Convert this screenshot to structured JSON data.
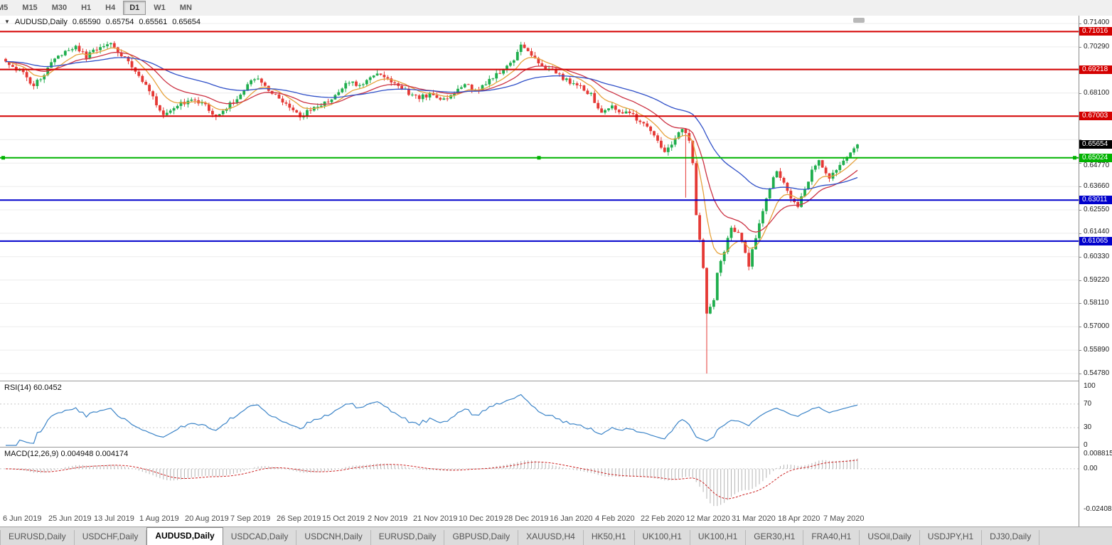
{
  "toolbar": {
    "periods": [
      "M5",
      "M15",
      "M30",
      "H1",
      "H4",
      "D1",
      "W1",
      "MN"
    ],
    "active_period": "D1"
  },
  "header": {
    "collapse_icon": "▼",
    "symbol": "AUDUSD,Daily",
    "open": "0.65590",
    "high": "0.65754",
    "low": "0.65561",
    "close": "0.65654"
  },
  "price_axis": {
    "ticks": [
      0.714,
      0.7029,
      0.6918,
      0.681,
      0.6699,
      0.6588,
      0.6477,
      0.6366,
      0.6255,
      0.6144,
      0.6033,
      0.5922,
      0.5811,
      0.57,
      0.5589,
      0.5478
    ]
  },
  "levels": [
    {
      "value": 0.71016,
      "label": "0.71016",
      "color": "#d40000",
      "selected": false
    },
    {
      "value": 0.69218,
      "label": "0.69218",
      "color": "#d40000",
      "selected": false
    },
    {
      "value": 0.67003,
      "label": "0.67003",
      "color": "#d40000",
      "selected": false
    },
    {
      "value": 0.65024,
      "label": "0.65024",
      "color": "#00b300",
      "selected": true
    },
    {
      "value": 0.63011,
      "label": "0.63011",
      "color": "#0000cc",
      "selected": false
    },
    {
      "value": 0.61065,
      "label": "0.61065",
      "color": "#0000cc",
      "selected": false
    }
  ],
  "current_price": {
    "value": 0.65654,
    "label": "0.65654",
    "bg": "#000000"
  },
  "date_axis": {
    "labels": [
      "6 Jun 2019",
      "25 Jun 2019",
      "13 Jul 2019",
      "1 Aug 2019",
      "20 Aug 2019",
      "7 Sep 2019",
      "26 Sep 2019",
      "15 Oct 2019",
      "2 Nov 2019",
      "21 Nov 2019",
      "10 Dec 2019",
      "28 Dec 2019",
      "16 Jan 2020",
      "4 Feb 2020",
      "22 Feb 2020",
      "12 Mar 2020",
      "31 Mar 2020",
      "18 Apr 2020",
      "7 May 2020"
    ],
    "candles_per_label": 13
  },
  "panes": {
    "rsi": {
      "label": "RSI(14) 60.0452",
      "name": "RSI",
      "period": 14,
      "current_value": 60.0452,
      "ticks": [
        100,
        70,
        30,
        0
      ],
      "dashed_levels": [
        70,
        30
      ],
      "range": [
        0,
        100
      ],
      "line_color": "#3d85c8"
    },
    "macd": {
      "label": "MACD(12,26,9) 0.004948 0.004174",
      "name": "MACD",
      "params": "12,26,9",
      "main_value": 0.004948,
      "signal_value": 0.004174,
      "ticks": [
        0.008815,
        0,
        -0.024082
      ],
      "range": [
        -0.024082,
        0.008815
      ],
      "histogram_color": "#b4b4b4",
      "signal_color": "#cc2222"
    }
  },
  "chart_data": {
    "type": "candlestick",
    "symbol": "AUDUSD",
    "timeframe": "Daily",
    "title": "AUDUSD,Daily",
    "ylim": [
      0.5478,
      0.714
    ],
    "n_candles": 244,
    "up_color": "#1fae4d",
    "down_color": "#e53935",
    "noise_amplitude": 0.0011,
    "wick_amplitude": 0.0018,
    "close_path_anchors": [
      [
        0,
        0.696
      ],
      [
        2,
        0.6935
      ],
      [
        5,
        0.69
      ],
      [
        8,
        0.684
      ],
      [
        11,
        0.6905
      ],
      [
        13,
        0.696
      ],
      [
        17,
        0.7
      ],
      [
        20,
        0.703
      ],
      [
        23,
        0.698
      ],
      [
        27,
        0.7035
      ],
      [
        30,
        0.7038
      ],
      [
        33,
        0.699
      ],
      [
        36,
        0.694
      ],
      [
        40,
        0.685
      ],
      [
        43,
        0.676
      ],
      [
        45,
        0.67
      ],
      [
        48,
        0.6742
      ],
      [
        53,
        0.678
      ],
      [
        57,
        0.675
      ],
      [
        60,
        0.67
      ],
      [
        63,
        0.674
      ],
      [
        66,
        0.679
      ],
      [
        70,
        0.686
      ],
      [
        72,
        0.688
      ],
      [
        75,
        0.683
      ],
      [
        79,
        0.677
      ],
      [
        82,
        0.672
      ],
      [
        84,
        0.67
      ],
      [
        88,
        0.674
      ],
      [
        92,
        0.677
      ],
      [
        95,
        0.682
      ],
      [
        98,
        0.6862
      ],
      [
        101,
        0.685
      ],
      [
        105,
        0.69
      ],
      [
        108,
        0.6888
      ],
      [
        112,
        0.685
      ],
      [
        115,
        0.681
      ],
      [
        118,
        0.679
      ],
      [
        121,
        0.6802
      ],
      [
        124,
        0.678
      ],
      [
        127,
        0.68
      ],
      [
        131,
        0.685
      ],
      [
        134,
        0.682
      ],
      [
        138,
        0.687
      ],
      [
        142,
        0.692
      ],
      [
        145,
        0.697
      ],
      [
        147,
        0.703
      ],
      [
        150,
        0.699
      ],
      [
        153,
        0.694
      ],
      [
        157,
        0.6905
      ],
      [
        160,
        0.687
      ],
      [
        164,
        0.684
      ],
      [
        167,
        0.68
      ],
      [
        170,
        0.671
      ],
      [
        173,
        0.6745
      ],
      [
        176,
        0.672
      ],
      [
        179,
        0.67
      ],
      [
        182,
        0.666
      ],
      [
        184,
        0.662
      ],
      [
        186,
        0.658
      ],
      [
        188,
        0.653
      ],
      [
        190,
        0.656
      ],
      [
        193,
        0.664
      ],
      [
        195,
        0.658
      ],
      [
        196,
        0.648
      ],
      [
        197,
        0.623
      ],
      [
        198,
        0.612
      ],
      [
        199,
        0.599
      ],
      [
        200,
        0.576
      ],
      [
        201,
        0.58
      ],
      [
        202,
        0.583
      ],
      [
        203,
        0.596
      ],
      [
        205,
        0.606
      ],
      [
        207,
        0.617
      ],
      [
        209,
        0.614
      ],
      [
        211,
        0.606
      ],
      [
        212,
        0.599
      ],
      [
        214,
        0.613
      ],
      [
        216,
        0.625
      ],
      [
        218,
        0.636
      ],
      [
        220,
        0.644
      ],
      [
        222,
        0.638
      ],
      [
        224,
        0.63
      ],
      [
        226,
        0.627
      ],
      [
        228,
        0.635
      ],
      [
        230,
        0.644
      ],
      [
        232,
        0.65
      ],
      [
        233,
        0.646
      ],
      [
        235,
        0.64
      ],
      [
        237,
        0.645
      ],
      [
        239,
        0.648
      ],
      [
        241,
        0.653
      ],
      [
        243,
        0.65654
      ]
    ],
    "wick_spikes": [
      {
        "index": 147,
        "high": 0.7041
      },
      {
        "index": 194,
        "low": 0.6313
      },
      {
        "index": 200,
        "low": 0.5478
      }
    ],
    "moving_averages": [
      {
        "period": 9,
        "color": "#e6a23c"
      },
      {
        "period": 20,
        "color": "#cc3344"
      },
      {
        "period": 50,
        "color": "#3050c8"
      }
    ]
  },
  "tabs": {
    "items": [
      "EURUSD,Daily",
      "USDCHF,Daily",
      "AUDUSD,Daily",
      "USDCAD,Daily",
      "USDCNH,Daily",
      "EURUSD,Daily",
      "GBPUSD,Daily",
      "XAUUSD,H4",
      "HK50,H1",
      "UK100,H1",
      "UK100,H1",
      "GER30,H1",
      "FRA40,H1",
      "USOil,Daily",
      "USDJPY,H1",
      "DJ30,Daily"
    ],
    "active_index": 2
  }
}
